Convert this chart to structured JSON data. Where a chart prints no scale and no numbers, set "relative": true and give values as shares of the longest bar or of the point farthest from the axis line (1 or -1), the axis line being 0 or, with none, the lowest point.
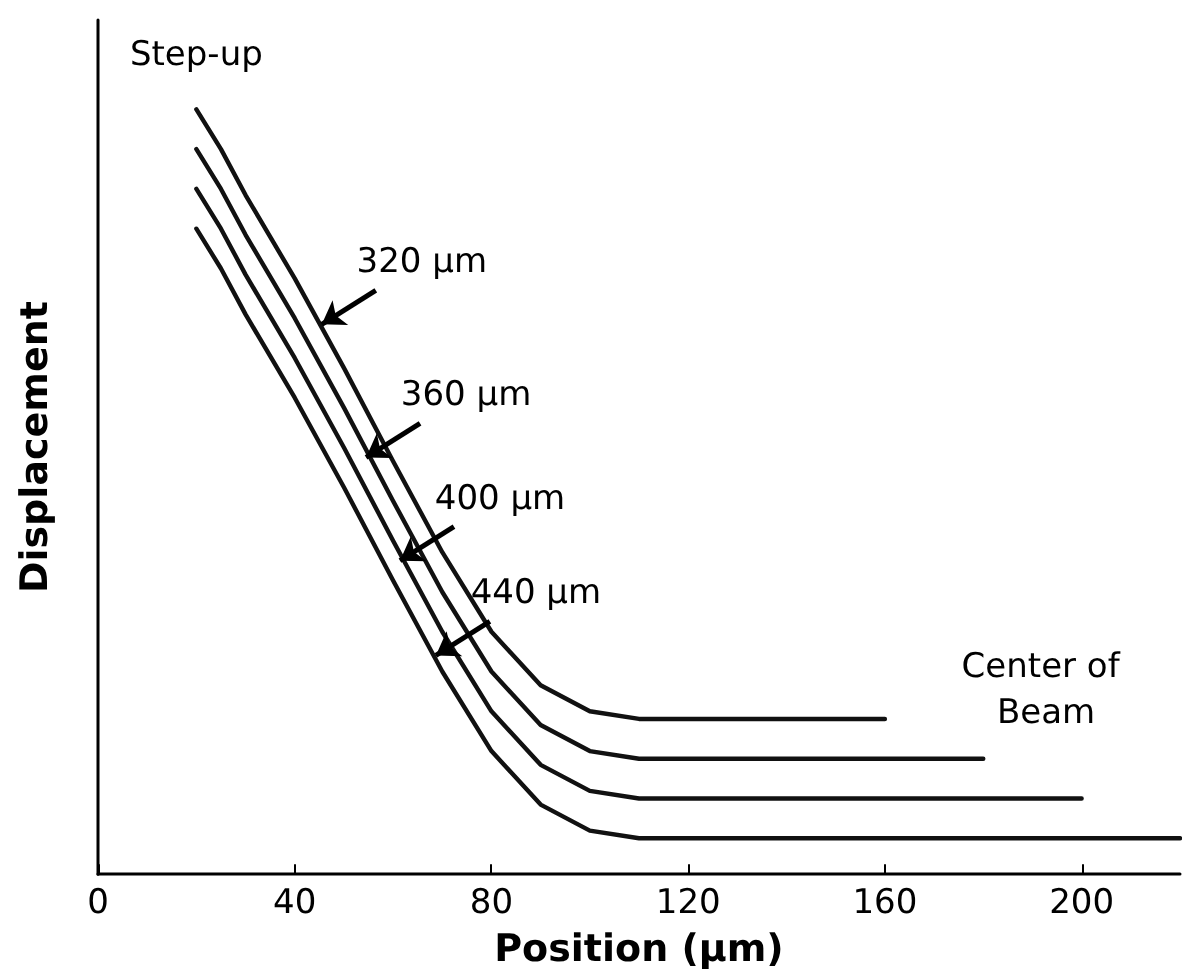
{
  "chart_data": {
    "type": "line",
    "relative": true,
    "xlabel": "Position (μm)",
    "ylabel": "Displacement",
    "xlim": [
      0,
      220
    ],
    "xticks": [
      0,
      40,
      80,
      120,
      160,
      200
    ],
    "grid": false,
    "marker": "none",
    "line_style": "solid",
    "series": [
      {
        "color": "#111111",
        "x": [
          20,
          25,
          30,
          40,
          50,
          60,
          70,
          80,
          90,
          100,
          110,
          160
        ],
        "values": [
          1.0,
          0.948,
          0.888,
          0.779,
          0.662,
          0.54,
          0.421,
          0.317,
          0.247,
          0.213,
          0.203,
          0.203
        ]
      },
      {
        "color": "#111111",
        "x": [
          20,
          25,
          30,
          40,
          50,
          60,
          70,
          80,
          90,
          100,
          110,
          180
        ],
        "values": [
          0.948,
          0.896,
          0.836,
          0.727,
          0.61,
          0.488,
          0.369,
          0.265,
          0.195,
          0.161,
          0.151,
          0.151
        ]
      },
      {
        "color": "#111111",
        "x": [
          20,
          25,
          30,
          40,
          50,
          60,
          70,
          80,
          90,
          100,
          110,
          200
        ],
        "values": [
          0.896,
          0.844,
          0.784,
          0.675,
          0.558,
          0.436,
          0.317,
          0.213,
          0.143,
          0.109,
          0.099,
          0.099
        ]
      },
      {
        "color": "#111111",
        "x": [
          20,
          25,
          30,
          40,
          50,
          60,
          70,
          80,
          90,
          100,
          110,
          220
        ],
        "values": [
          0.844,
          0.792,
          0.732,
          0.623,
          0.506,
          0.384,
          0.265,
          0.161,
          0.091,
          0.057,
          0.047,
          0.047
        ]
      }
    ],
    "annotations": [
      "Step-up",
      {
        "text": "320 μm",
        "x": 45.5,
        "y": 0.719
      },
      {
        "text": "360 μm",
        "x": 54.5,
        "y": 0.545
      },
      {
        "text": "400 μm",
        "x": 61.4,
        "y": 0.41
      },
      {
        "text": "440 μm",
        "x": 68.7,
        "y": 0.286
      },
      "Center of Beam"
    ]
  }
}
